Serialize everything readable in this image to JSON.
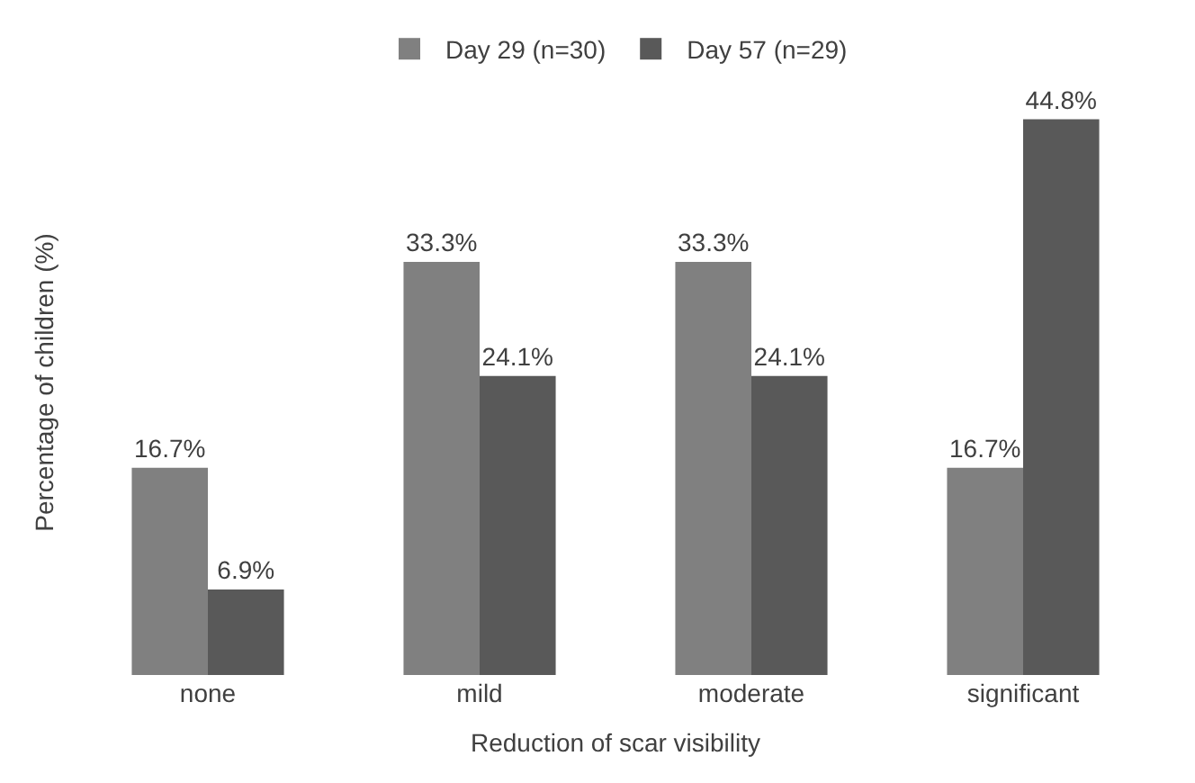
{
  "chart_data": {
    "type": "bar",
    "xlabel": "Reduction of scar visibility",
    "ylabel": "Percentage of children (%)",
    "categories": [
      "none",
      "mild",
      "moderate",
      "significant"
    ],
    "series": [
      {
        "name": "Day 29 (n=30)",
        "color": "#808080",
        "values": [
          16.7,
          33.3,
          33.3,
          16.7
        ],
        "value_labels": [
          "16.7%",
          "33.3%",
          "33.3%",
          "16.7%"
        ]
      },
      {
        "name": "Day 57 (n=29)",
        "color": "#595959",
        "values": [
          6.9,
          24.1,
          24.1,
          44.8
        ],
        "value_labels": [
          "6.9%",
          "24.1%",
          "24.1%",
          "44.8%"
        ]
      }
    ],
    "legend": "top"
  }
}
